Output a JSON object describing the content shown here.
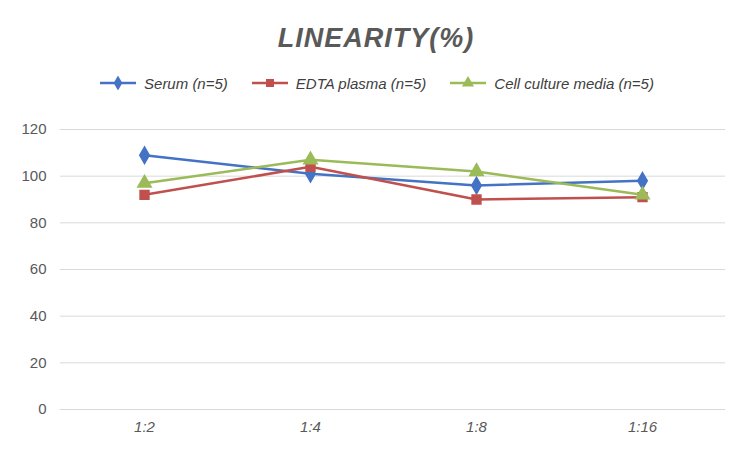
{
  "chart_data": {
    "type": "line",
    "title": "LINEARITY(%)",
    "categories": [
      "1:2",
      "1:4",
      "1:8",
      "1:16"
    ],
    "series": [
      {
        "name": "Serum (n=5)",
        "color": "#4472c4",
        "marker": "diamond",
        "values": [
          109,
          101,
          96,
          98
        ]
      },
      {
        "name": "EDTA plasma (n=5)",
        "color": "#c0504d",
        "marker": "square",
        "values": [
          92,
          104,
          90,
          91
        ]
      },
      {
        "name": "Cell culture media (n=5)",
        "color": "#9bbb59",
        "marker": "triangle",
        "values": [
          97,
          107,
          102,
          92
        ]
      }
    ],
    "ylim": [
      0,
      120
    ],
    "yticks": [
      0,
      20,
      40,
      60,
      80,
      100,
      120
    ],
    "grid": true,
    "legend": "top"
  }
}
